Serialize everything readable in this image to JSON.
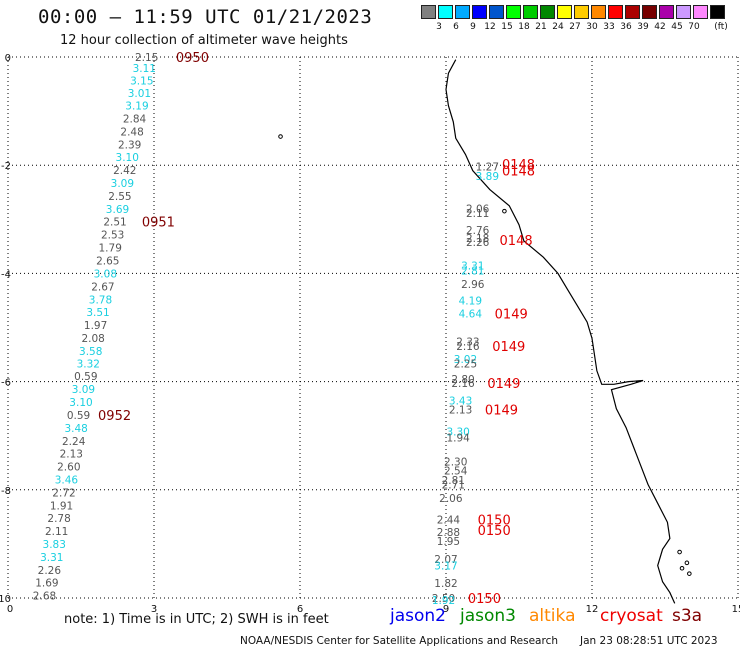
{
  "title": "00:00 — 11:59 UTC 01/21/2023",
  "subtitle": "12 hour collection of altimeter wave heights",
  "colorbar": {
    "unit": "(ft)",
    "bins": [
      {
        "label": "",
        "color": "#808080"
      },
      {
        "label": "3",
        "color": "#00ffff"
      },
      {
        "label": "6",
        "color": "#00aaff"
      },
      {
        "label": "9",
        "color": "#0000ff"
      },
      {
        "label": "12",
        "color": "#0055cc"
      },
      {
        "label": "15",
        "color": "#00ff00"
      },
      {
        "label": "18",
        "color": "#00cc00"
      },
      {
        "label": "21",
        "color": "#008800"
      },
      {
        "label": "24",
        "color": "#ffff00"
      },
      {
        "label": "27",
        "color": "#ffcc00"
      },
      {
        "label": "30",
        "color": "#ff8800"
      },
      {
        "label": "33",
        "color": "#ff0000"
      },
      {
        "label": "36",
        "color": "#aa0000"
      },
      {
        "label": "39",
        "color": "#770000"
      },
      {
        "label": "42",
        "color": "#aa00aa"
      },
      {
        "label": "45",
        "color": "#cc99ff"
      },
      {
        "label": "70",
        "color": "#ff88ff"
      },
      {
        "label": "",
        "color": "#000000"
      }
    ]
  },
  "axes": {
    "x_ticks": [
      "0",
      "3",
      "6",
      "9",
      "12",
      "15"
    ],
    "y_ticks": [
      "0",
      "-2",
      "-4",
      "-6",
      "-8",
      "-10"
    ],
    "xlim": [
      0,
      15
    ],
    "ylim": [
      -10,
      0
    ]
  },
  "colors": {
    "gray": "#555555",
    "cyan": "#19cfe0",
    "darkred": "#800000",
    "red": "#e00000",
    "coast": "#000000",
    "grid": "#000000"
  },
  "observations": [
    {
      "x": 2.85,
      "y": 0.0,
      "value": "2.15",
      "color": "gray"
    },
    {
      "x": 2.8,
      "y": -0.2,
      "value": "3.11",
      "color": "cyan"
    },
    {
      "x": 2.75,
      "y": -0.43,
      "value": "3.15",
      "color": "cyan"
    },
    {
      "x": 2.7,
      "y": -0.67,
      "value": "3.01",
      "color": "cyan"
    },
    {
      "x": 2.65,
      "y": -0.9,
      "value": "3.19",
      "color": "cyan"
    },
    {
      "x": 2.6,
      "y": -1.14,
      "value": "2.84",
      "color": "gray"
    },
    {
      "x": 2.55,
      "y": -1.38,
      "value": "2.48",
      "color": "gray"
    },
    {
      "x": 2.5,
      "y": -1.62,
      "value": "2.39",
      "color": "gray"
    },
    {
      "x": 2.45,
      "y": -1.85,
      "value": "3.10",
      "color": "cyan"
    },
    {
      "x": 2.4,
      "y": -2.09,
      "value": "2.42",
      "color": "gray"
    },
    {
      "x": 2.35,
      "y": -2.33,
      "value": "3.09",
      "color": "cyan"
    },
    {
      "x": 2.3,
      "y": -2.57,
      "value": "2.55",
      "color": "gray"
    },
    {
      "x": 2.25,
      "y": -2.81,
      "value": "3.69",
      "color": "cyan"
    },
    {
      "x": 2.2,
      "y": -3.04,
      "value": "2.51",
      "color": "gray"
    },
    {
      "x": 2.15,
      "y": -3.28,
      "value": "2.53",
      "color": "gray"
    },
    {
      "x": 2.1,
      "y": -3.52,
      "value": "1.79",
      "color": "gray"
    },
    {
      "x": 2.05,
      "y": -3.76,
      "value": "2.65",
      "color": "gray"
    },
    {
      "x": 2.0,
      "y": -4.0,
      "value": "3.08",
      "color": "cyan"
    },
    {
      "x": 1.95,
      "y": -4.24,
      "value": "2.67",
      "color": "gray"
    },
    {
      "x": 1.9,
      "y": -4.48,
      "value": "3.78",
      "color": "cyan"
    },
    {
      "x": 1.85,
      "y": -4.71,
      "value": "3.51",
      "color": "cyan"
    },
    {
      "x": 1.8,
      "y": -4.95,
      "value": "1.97",
      "color": "gray"
    },
    {
      "x": 1.75,
      "y": -5.19,
      "value": "2.08",
      "color": "gray"
    },
    {
      "x": 1.7,
      "y": -5.43,
      "value": "3.58",
      "color": "cyan"
    },
    {
      "x": 1.65,
      "y": -5.67,
      "value": "3.32",
      "color": "cyan"
    },
    {
      "x": 1.6,
      "y": -5.9,
      "value": "0.59",
      "color": "gray"
    },
    {
      "x": 1.55,
      "y": -6.14,
      "value": "3.09",
      "color": "cyan"
    },
    {
      "x": 1.5,
      "y": -6.38,
      "value": "3.10",
      "color": "cyan"
    },
    {
      "x": 1.45,
      "y": -6.62,
      "value": "0.59",
      "color": "gray"
    },
    {
      "x": 1.4,
      "y": -6.86,
      "value": "3.48",
      "color": "cyan"
    },
    {
      "x": 1.35,
      "y": -7.1,
      "value": "2.24",
      "color": "gray"
    },
    {
      "x": 1.3,
      "y": -7.33,
      "value": "2.13",
      "color": "gray"
    },
    {
      "x": 1.25,
      "y": -7.57,
      "value": "2.60",
      "color": "gray"
    },
    {
      "x": 1.2,
      "y": -7.81,
      "value": "3.46",
      "color": "cyan"
    },
    {
      "x": 1.15,
      "y": -8.05,
      "value": "2.72",
      "color": "gray"
    },
    {
      "x": 1.1,
      "y": -8.29,
      "value": "1.91",
      "color": "gray"
    },
    {
      "x": 1.05,
      "y": -8.52,
      "value": "2.78",
      "color": "gray"
    },
    {
      "x": 1.0,
      "y": -8.76,
      "value": "2.11",
      "color": "gray"
    },
    {
      "x": 0.95,
      "y": -9.0,
      "value": "3.83",
      "color": "cyan"
    },
    {
      "x": 0.9,
      "y": -9.24,
      "value": "3.31",
      "color": "cyan"
    },
    {
      "x": 0.85,
      "y": -9.48,
      "value": "2.26",
      "color": "gray"
    },
    {
      "x": 0.8,
      "y": -9.71,
      "value": "1.69",
      "color": "gray"
    },
    {
      "x": 0.75,
      "y": -9.95,
      "value": "2.68",
      "color": "gray"
    },
    {
      "x": 9.85,
      "y": -2.02,
      "value": "1.27",
      "color": "gray"
    },
    {
      "x": 9.85,
      "y": -2.2,
      "value": "3.89",
      "color": "cyan"
    },
    {
      "x": 9.65,
      "y": -2.8,
      "value": "2.06",
      "color": "gray"
    },
    {
      "x": 9.65,
      "y": -2.88,
      "value": "2.11",
      "color": "gray"
    },
    {
      "x": 9.65,
      "y": -3.2,
      "value": "2.76",
      "color": "gray"
    },
    {
      "x": 9.65,
      "y": -3.35,
      "value": "2.18",
      "color": "gray"
    },
    {
      "x": 9.65,
      "y": -3.42,
      "value": "2.26",
      "color": "gray"
    },
    {
      "x": 9.55,
      "y": -3.85,
      "value": "3.31",
      "color": "cyan"
    },
    {
      "x": 9.55,
      "y": -3.95,
      "value": "2.81",
      "color": "cyan"
    },
    {
      "x": 9.55,
      "y": -4.2,
      "value": "2.96",
      "color": "gray"
    },
    {
      "x": 9.5,
      "y": -4.5,
      "value": "4.19",
      "color": "cyan"
    },
    {
      "x": 9.5,
      "y": -4.74,
      "value": "4.64",
      "color": "cyan"
    },
    {
      "x": 9.45,
      "y": -5.26,
      "value": "2.33",
      "color": "gray"
    },
    {
      "x": 9.45,
      "y": -5.34,
      "value": "2.16",
      "color": "gray"
    },
    {
      "x": 9.4,
      "y": -5.58,
      "value": "3.02",
      "color": "cyan"
    },
    {
      "x": 9.4,
      "y": -5.67,
      "value": "2.25",
      "color": "gray"
    },
    {
      "x": 9.35,
      "y": -5.95,
      "value": "2.80",
      "color": "gray"
    },
    {
      "x": 9.35,
      "y": -6.03,
      "value": "2.16",
      "color": "gray"
    },
    {
      "x": 9.3,
      "y": -6.35,
      "value": "3.43",
      "color": "cyan"
    },
    {
      "x": 9.3,
      "y": -6.52,
      "value": "2.13",
      "color": "gray"
    },
    {
      "x": 9.25,
      "y": -6.92,
      "value": "3.30",
      "color": "cyan"
    },
    {
      "x": 9.25,
      "y": -7.03,
      "value": "1.94",
      "color": "gray"
    },
    {
      "x": 9.2,
      "y": -7.48,
      "value": "2.30",
      "color": "gray"
    },
    {
      "x": 9.2,
      "y": -7.64,
      "value": "2.54",
      "color": "gray"
    },
    {
      "x": 9.15,
      "y": -7.82,
      "value": "2.81",
      "color": "gray"
    },
    {
      "x": 9.15,
      "y": -7.9,
      "value": "2.71",
      "color": "gray"
    },
    {
      "x": 9.1,
      "y": -8.15,
      "value": "2.06",
      "color": "gray"
    },
    {
      "x": 9.05,
      "y": -8.55,
      "value": "2.44",
      "color": "gray"
    },
    {
      "x": 9.05,
      "y": -8.78,
      "value": "2.88",
      "color": "gray"
    },
    {
      "x": 9.05,
      "y": -8.95,
      "value": "1.95",
      "color": "gray"
    },
    {
      "x": 9.0,
      "y": -9.28,
      "value": "2.07",
      "color": "gray"
    },
    {
      "x": 9.0,
      "y": -9.4,
      "value": "3.17",
      "color": "cyan"
    },
    {
      "x": 9.0,
      "y": -9.72,
      "value": "1.82",
      "color": "gray"
    },
    {
      "x": 8.95,
      "y": -10.0,
      "value": "2.50",
      "color": "gray"
    },
    {
      "x": 8.95,
      "y": -10.04,
      "value": "1.92",
      "color": "cyan"
    }
  ],
  "time_labels": [
    {
      "x": 3.45,
      "y": 0.0,
      "text": "0950",
      "color": "darkred"
    },
    {
      "x": 2.75,
      "y": -3.04,
      "text": "0951",
      "color": "darkred"
    },
    {
      "x": 1.85,
      "y": -6.62,
      "text": "0952",
      "color": "darkred"
    },
    {
      "x": 10.15,
      "y": -1.98,
      "text": "0148",
      "color": "red"
    },
    {
      "x": 10.15,
      "y": -2.1,
      "text": "0148",
      "color": "red"
    },
    {
      "x": 10.1,
      "y": -3.38,
      "text": "0148",
      "color": "red"
    },
    {
      "x": 10.0,
      "y": -4.74,
      "text": "0149",
      "color": "red"
    },
    {
      "x": 9.95,
      "y": -5.34,
      "text": "0149",
      "color": "red"
    },
    {
      "x": 9.85,
      "y": -6.03,
      "text": "0149",
      "color": "red"
    },
    {
      "x": 9.8,
      "y": -6.52,
      "text": "0149",
      "color": "red"
    },
    {
      "x": 9.65,
      "y": -8.55,
      "text": "0150",
      "color": "red"
    },
    {
      "x": 9.65,
      "y": -8.74,
      "text": "0150",
      "color": "red"
    },
    {
      "x": 9.45,
      "y": -10.0,
      "text": "0150",
      "color": "red"
    }
  ],
  "coastline": [
    [
      9.2,
      -0.05
    ],
    [
      9.05,
      -0.3
    ],
    [
      9.0,
      -0.6
    ],
    [
      9.05,
      -0.9
    ],
    [
      9.15,
      -1.2
    ],
    [
      9.2,
      -1.5
    ],
    [
      9.4,
      -1.8
    ],
    [
      9.55,
      -2.1
    ],
    [
      9.9,
      -2.45
    ],
    [
      10.3,
      -2.75
    ],
    [
      10.5,
      -3.1
    ],
    [
      10.6,
      -3.4
    ],
    [
      11.0,
      -3.7
    ],
    [
      11.3,
      -4.0
    ],
    [
      11.5,
      -4.3
    ],
    [
      11.7,
      -4.6
    ],
    [
      11.9,
      -4.9
    ],
    [
      12.0,
      -5.2
    ],
    [
      12.05,
      -5.5
    ],
    [
      12.1,
      -5.8
    ],
    [
      12.2,
      -6.05
    ],
    [
      12.45,
      -6.05
    ],
    [
      12.75,
      -6.0
    ],
    [
      13.05,
      -5.98
    ],
    [
      12.8,
      -6.05
    ],
    [
      12.4,
      -6.15
    ],
    [
      12.5,
      -6.5
    ],
    [
      12.7,
      -6.85
    ],
    [
      12.85,
      -7.2
    ],
    [
      13.0,
      -7.55
    ],
    [
      13.15,
      -7.9
    ],
    [
      13.35,
      -8.25
    ],
    [
      13.55,
      -8.6
    ],
    [
      13.6,
      -8.9
    ],
    [
      13.45,
      -9.1
    ],
    [
      13.35,
      -9.4
    ],
    [
      13.45,
      -9.7
    ],
    [
      13.6,
      -9.9
    ],
    [
      13.7,
      -10.1
    ]
  ],
  "islands": [
    [
      5.6,
      -1.47
    ],
    [
      10.2,
      -2.85
    ],
    [
      13.8,
      -9.15
    ],
    [
      13.95,
      -9.35
    ],
    [
      14.0,
      -9.55
    ],
    [
      13.85,
      -9.45
    ]
  ],
  "note": "note:  1) Time is in UTC;  2) SWH is in feet",
  "satellites": [
    {
      "name": "jason2",
      "color": "#0000ee"
    },
    {
      "name": "jason3",
      "color": "#008800"
    },
    {
      "name": "altika",
      "color": "#ff8800"
    },
    {
      "name": "cryosat",
      "color": "#ee0000"
    },
    {
      "name": "s3a",
      "color": "#800000"
    }
  ],
  "credit": "NOAA/NESDIS Center for Satellite Applications and Research",
  "timestamp": "Jan 23 08:28:51 UTC 2023"
}
